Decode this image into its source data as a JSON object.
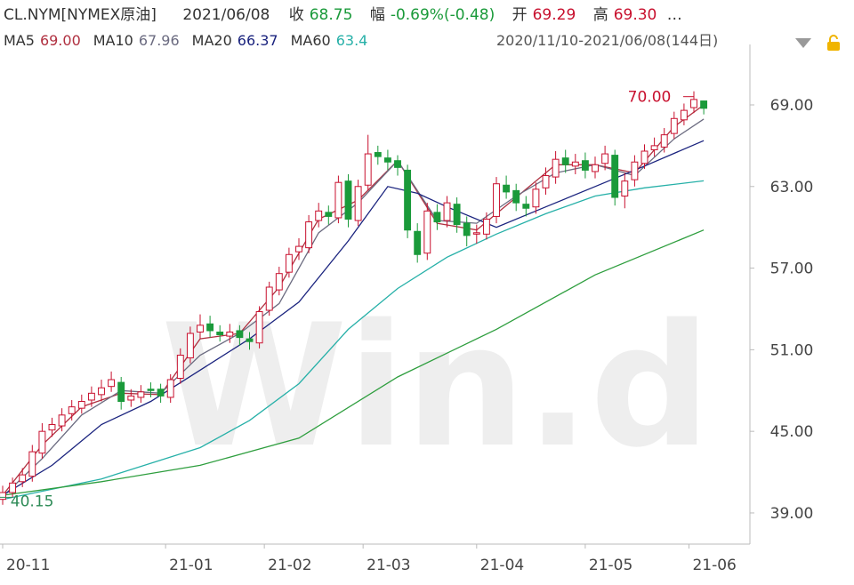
{
  "header": {
    "symbol": "CL.NYM[NYMEX原油]",
    "date": "2021/06/08",
    "close_label": "收",
    "close": "68.75",
    "change_label": "幅",
    "change": "-0.69%(-0.48)",
    "open_label": "开",
    "open": "69.29",
    "high_label": "高",
    "high": "69.30",
    "more": "…"
  },
  "chart_data": {
    "type": "candlestick",
    "watermark": "Win.d",
    "range_label": "2020/11/10-2021/06/08(144日)",
    "xlim": [
      -0.54,
      151.35
    ],
    "ylim": [
      36.71,
      72.79
    ],
    "yticks": [
      {
        "value": 39,
        "label": "39.00"
      },
      {
        "value": 45,
        "label": "45.00"
      },
      {
        "value": 51,
        "label": "51.00"
      },
      {
        "value": 57,
        "label": "57.00"
      },
      {
        "value": 63,
        "label": "63.00"
      },
      {
        "value": 69,
        "label": "69.00"
      }
    ],
    "xticks": [
      {
        "value": 0,
        "label": "20-11"
      },
      {
        "value": 33,
        "label": "21-01"
      },
      {
        "value": 53,
        "label": "21-02"
      },
      {
        "value": 73,
        "label": "21-03"
      },
      {
        "value": 96,
        "label": "21-04"
      },
      {
        "value": 118,
        "label": "21-05"
      },
      {
        "value": 139,
        "label": "21-06"
      }
    ],
    "up_color": "#c8102e",
    "down_color": "#1a9a3a",
    "candles": {
      "x": [
        0,
        2,
        4,
        6,
        8,
        10,
        12,
        14,
        16,
        18,
        20,
        22,
        24,
        26,
        28,
        30,
        32,
        34,
        36,
        38,
        40,
        42,
        44,
        46,
        48,
        50,
        52,
        54,
        56,
        58,
        60,
        62,
        64,
        66,
        68,
        70,
        72,
        74,
        76,
        78,
        80,
        82,
        84,
        86,
        88,
        90,
        92,
        94,
        96,
        98,
        100,
        102,
        104,
        106,
        108,
        110,
        112,
        114,
        116,
        118,
        120,
        122,
        124,
        126,
        128,
        130,
        132,
        134,
        136,
        138,
        140,
        142
      ],
      "open": [
        40.0,
        40.5,
        41.3,
        41.7,
        43.4,
        45.1,
        45.4,
        46.3,
        46.7,
        47.3,
        47.7,
        48.3,
        48.6,
        47.3,
        47.5,
        48.1,
        48.1,
        47.5,
        48.9,
        50.4,
        52.3,
        52.9,
        52.3,
        52.0,
        52.4,
        51.8,
        51.5,
        53.9,
        55.4,
        56.7,
        58.2,
        58.5,
        60.5,
        61.1,
        60.7,
        63.4,
        60.5,
        63.1,
        65.5,
        65.1,
        64.9,
        64.2,
        59.7,
        58.1,
        61.1,
        60.5,
        61.7,
        60.3,
        59.5,
        59.5,
        60.8,
        63.1,
        62.7,
        61.7,
        61.5,
        62.9,
        63.7,
        65.1,
        64.5,
        64.9,
        64.1,
        64.7,
        65.3,
        62.3,
        63.5,
        64.7,
        65.7,
        65.9,
        66.9,
        67.9,
        68.8,
        69.29
      ],
      "high": [
        41.0,
        41.6,
        42.3,
        44.0,
        45.6,
        46.0,
        46.7,
        47.3,
        47.7,
        48.3,
        48.8,
        49.4,
        49.0,
        48.1,
        48.4,
        48.6,
        48.5,
        49.2,
        51.1,
        52.7,
        53.6,
        53.5,
        52.8,
        52.9,
        52.8,
        52.3,
        54.2,
        56.0,
        57.1,
        58.5,
        59.2,
        60.9,
        61.8,
        61.6,
        63.8,
        63.9,
        63.5,
        66.8,
        66.0,
        65.7,
        65.3,
        64.6,
        60.3,
        61.8,
        61.7,
        62.3,
        62.2,
        60.8,
        60.2,
        61.1,
        63.7,
        63.8,
        63.2,
        62.3,
        63.3,
        64.4,
        65.6,
        65.7,
        65.4,
        65.5,
        65.2,
        66.0,
        65.7,
        64.0,
        65.3,
        66.1,
        66.6,
        67.3,
        68.5,
        69.1,
        70.0,
        69.3
      ],
      "low": [
        39.6,
        40.15,
        40.9,
        41.3,
        43.0,
        44.6,
        45.0,
        45.8,
        46.3,
        46.8,
        47.2,
        47.9,
        46.6,
        46.8,
        47.1,
        47.5,
        47.1,
        47.1,
        48.5,
        50.0,
        51.8,
        51.9,
        51.6,
        51.5,
        51.3,
        51.0,
        51.1,
        53.5,
        55.0,
        56.3,
        57.6,
        58.1,
        60.0,
        60.2,
        60.3,
        60.0,
        60.1,
        62.7,
        64.6,
        64.2,
        63.8,
        59.2,
        57.4,
        57.6,
        59.8,
        60.0,
        59.6,
        58.6,
        58.8,
        59.1,
        60.3,
        62.1,
        61.2,
        60.8,
        61.0,
        62.4,
        63.2,
        64.0,
        63.9,
        63.6,
        63.6,
        64.2,
        61.6,
        61.4,
        63.0,
        64.3,
        65.2,
        65.5,
        66.5,
        67.5,
        68.4,
        68.3
      ],
      "close": [
        40.5,
        41.2,
        41.8,
        43.5,
        45.0,
        45.5,
        46.2,
        46.8,
        47.2,
        47.8,
        48.2,
        48.8,
        47.2,
        47.6,
        47.9,
        48.0,
        47.6,
        48.8,
        50.6,
        52.2,
        52.8,
        52.4,
        52.1,
        52.3,
        51.9,
        51.6,
        53.8,
        55.6,
        56.6,
        58.0,
        58.6,
        60.4,
        61.2,
        60.8,
        63.3,
        60.6,
        63.0,
        65.4,
        65.2,
        64.8,
        64.4,
        59.8,
        58.0,
        61.2,
        60.4,
        61.8,
        60.2,
        59.4,
        59.6,
        60.6,
        63.2,
        62.6,
        61.8,
        61.4,
        62.8,
        63.8,
        65.0,
        64.6,
        64.8,
        64.2,
        64.6,
        65.4,
        62.2,
        63.4,
        64.8,
        65.6,
        66.0,
        66.8,
        68.0,
        68.6,
        69.4,
        68.75
      ]
    },
    "series": [
      {
        "name": "MA5",
        "color": "#b03040",
        "last_label": "69.00",
        "x": [
          0,
          8,
          16,
          24,
          32,
          40,
          48,
          56,
          64,
          72,
          80,
          88,
          96,
          104,
          112,
          120,
          128,
          136,
          142
        ],
        "values": [
          40.3,
          44.0,
          46.8,
          47.8,
          47.7,
          51.8,
          52.2,
          55.6,
          60.6,
          62.0,
          64.9,
          60.3,
          59.8,
          62.2,
          64.6,
          64.6,
          64.0,
          67.4,
          69.0
        ]
      },
      {
        "name": "MA10",
        "color": "#6b6b80",
        "last_label": "67.96",
        "x": [
          0,
          8,
          16,
          24,
          32,
          40,
          48,
          56,
          64,
          72,
          80,
          88,
          96,
          104,
          112,
          120,
          128,
          136,
          142
        ],
        "values": [
          40.2,
          43.0,
          46.2,
          48.0,
          47.8,
          50.6,
          52.2,
          54.4,
          59.6,
          61.8,
          64.9,
          60.5,
          60.3,
          62.3,
          64.0,
          64.6,
          63.8,
          66.5,
          67.96
        ]
      },
      {
        "name": "MA20",
        "color": "#1a237e",
        "last_label": "66.37",
        "x": [
          0,
          10,
          20,
          30,
          40,
          50,
          60,
          70,
          78,
          84,
          90,
          100,
          110,
          120,
          130,
          142
        ],
        "values": [
          40.3,
          42.5,
          45.5,
          47.2,
          49.5,
          51.8,
          54.5,
          59.0,
          63.0,
          62.5,
          61.5,
          60.0,
          61.5,
          63.0,
          64.5,
          66.37
        ]
      },
      {
        "name": "MA60",
        "color": "#26b0a8",
        "last_label": "63.4",
        "x": [
          0,
          20,
          40,
          50,
          60,
          70,
          80,
          90,
          100,
          110,
          120,
          130,
          142
        ],
        "values": [
          40.0,
          41.5,
          43.8,
          45.8,
          48.5,
          52.5,
          55.5,
          57.8,
          59.5,
          61.0,
          62.3,
          62.9,
          63.42
        ]
      },
      {
        "color": "#2e9e3e",
        "x": [
          0,
          20,
          40,
          60,
          80,
          100,
          120,
          142
        ],
        "values": [
          40.3,
          41.3,
          42.5,
          44.5,
          49.0,
          52.5,
          56.5,
          59.8
        ]
      }
    ],
    "annotations": [
      {
        "label": "70.00",
        "value": 70.0,
        "x": 140,
        "color": "#c8102e"
      },
      {
        "label": "40.15",
        "value": 40.15,
        "x": 2,
        "color": "#2e8b57"
      }
    ]
  }
}
